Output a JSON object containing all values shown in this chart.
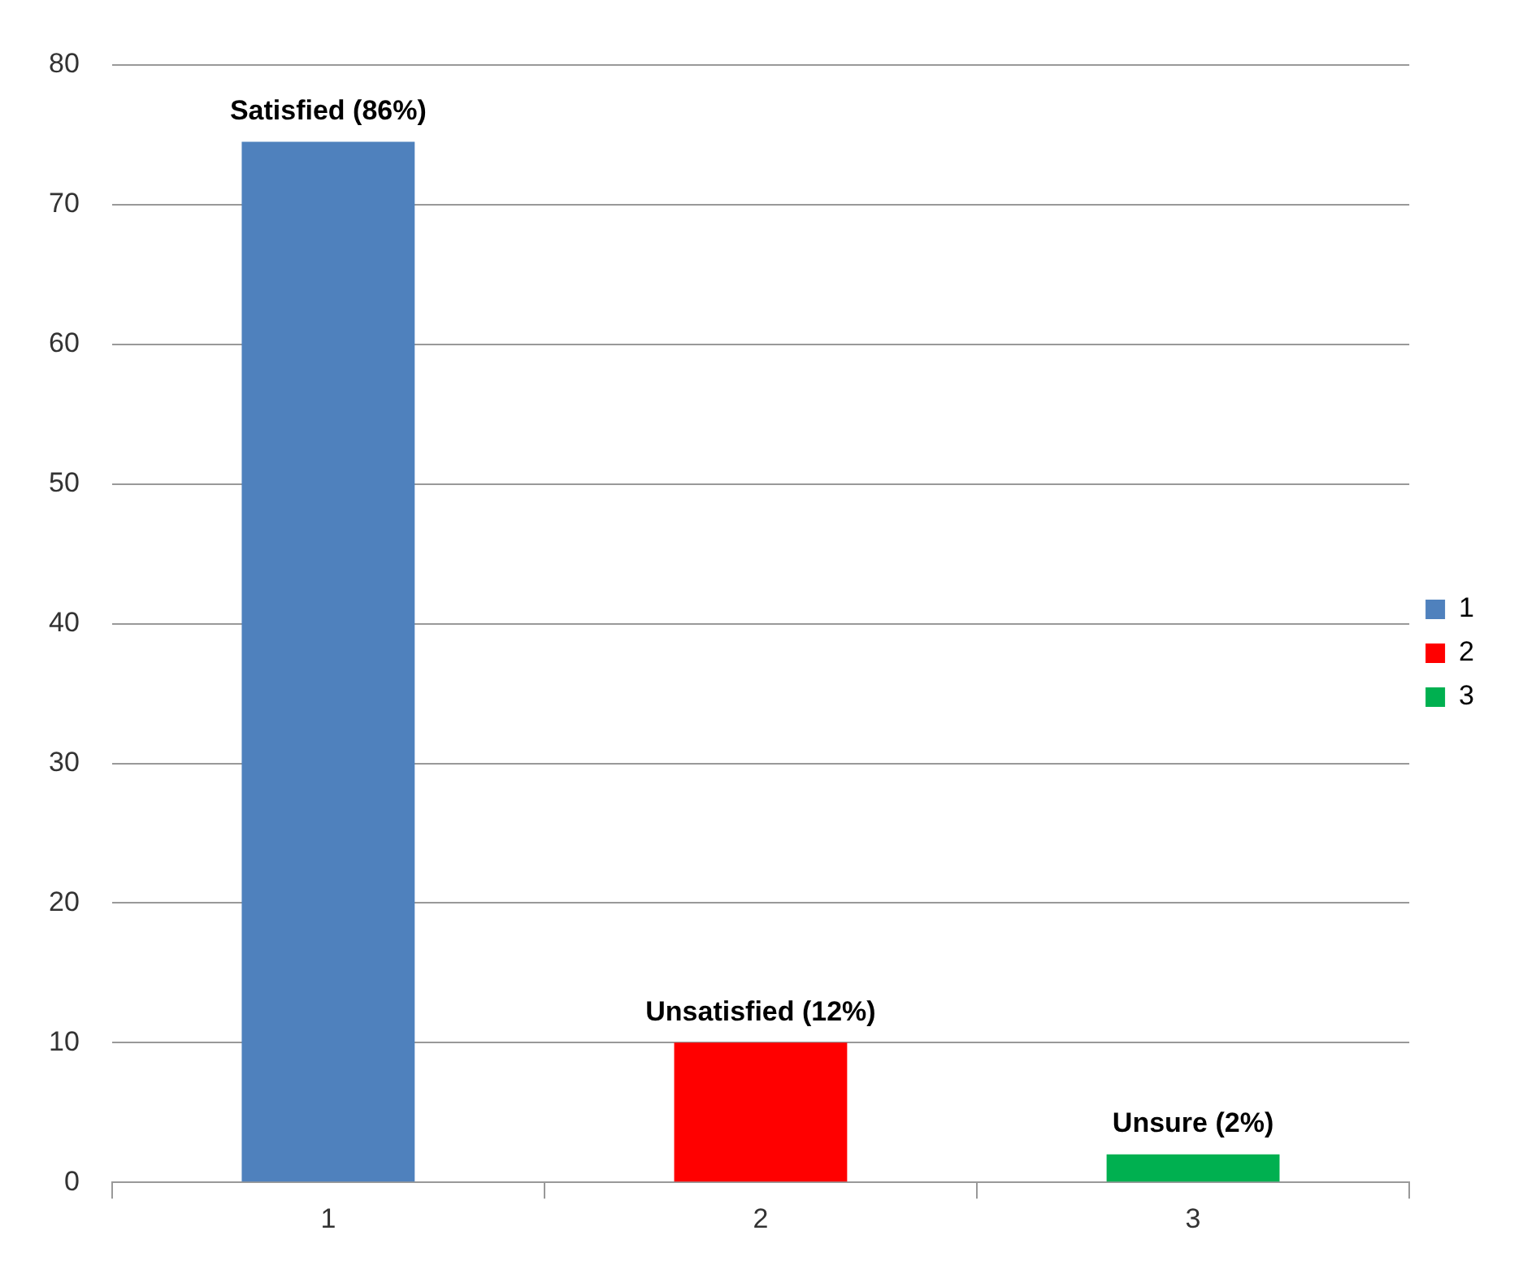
{
  "chart_data": {
    "type": "bar",
    "categories": [
      "1",
      "2",
      "3"
    ],
    "series": [
      {
        "name": "1",
        "color": "#4f81bd",
        "values": [
          74.5,
          null,
          null
        ]
      },
      {
        "name": "2",
        "color": "#ff0000",
        "values": [
          null,
          10,
          null
        ]
      },
      {
        "name": "3",
        "color": "#00b050",
        "values": [
          null,
          null,
          2
        ]
      }
    ],
    "ylim": [
      0,
      80
    ],
    "yticks": [
      0,
      10,
      20,
      30,
      40,
      50,
      60,
      70,
      80
    ],
    "grid": "y",
    "legend": "right",
    "annotations": [
      {
        "text": "Satisfied (86%)",
        "x": "1",
        "y": 74.5
      },
      {
        "text": "Unsatisfied (12%)",
        "x": "2",
        "y": 10
      },
      {
        "text": "Unsure (2%)",
        "x": "3",
        "y": 2
      }
    ]
  }
}
